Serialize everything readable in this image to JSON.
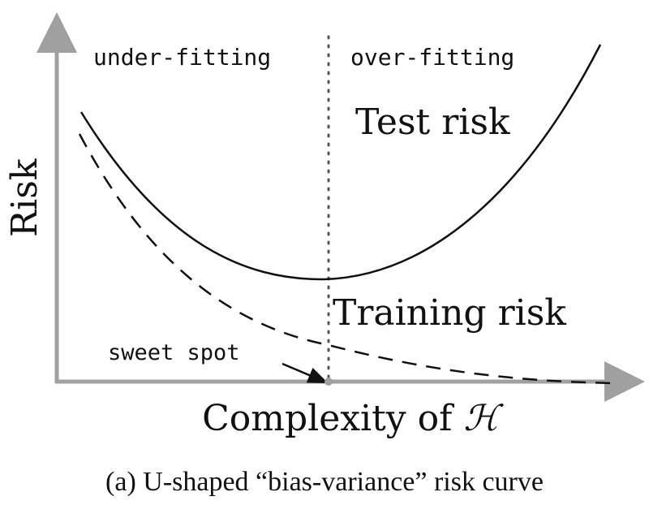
{
  "labels": {
    "region_left": "under-fitting",
    "region_right": "over-fitting",
    "test_curve": "Test risk",
    "training_curve": "Training risk",
    "sweet_spot": "sweet spot",
    "y_axis": "Risk",
    "x_axis_prefix": "Complexity of ",
    "x_axis_symbol": "ℋ"
  },
  "caption": "(a) U-shaped “bias-variance” risk curve",
  "colors": {
    "axis": "#a0a0a0",
    "curve": "#111111",
    "divider": "#555555",
    "point": "#a0a0a0"
  }
}
